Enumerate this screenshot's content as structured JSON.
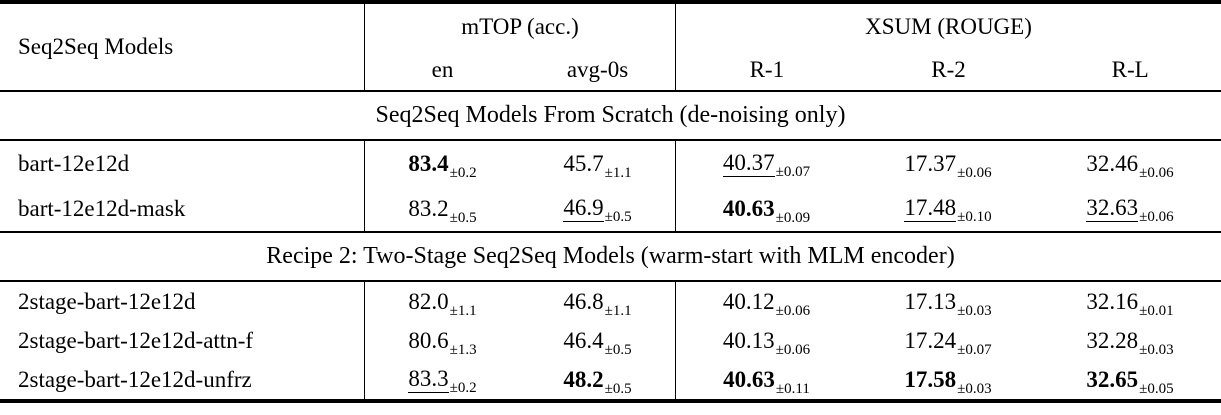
{
  "table": {
    "header": {
      "model_col": "Seq2Seq Models",
      "groups": [
        {
          "label": "mTOP (acc.)",
          "cols": [
            "en",
            "avg-0s"
          ]
        },
        {
          "label": "XSUM (ROUGE)",
          "cols": [
            "R-1",
            "R-2",
            "R-L"
          ]
        }
      ]
    },
    "sections": [
      {
        "title": "Seq2Seq Models From Scratch (de-noising only)",
        "rows": [
          {
            "model": "bart-12e12d",
            "cells": [
              {
                "value": "83.4",
                "pm": "±0.2",
                "style": "bold"
              },
              {
                "value": "45.7",
                "pm": "±1.1",
                "style": "plain"
              },
              {
                "value": "40.37",
                "pm": "±0.07",
                "style": "underline"
              },
              {
                "value": "17.37",
                "pm": "±0.06",
                "style": "plain"
              },
              {
                "value": "32.46",
                "pm": "±0.06",
                "style": "plain"
              }
            ]
          },
          {
            "model": "bart-12e12d-mask",
            "cells": [
              {
                "value": "83.2",
                "pm": "±0.5",
                "style": "plain"
              },
              {
                "value": "46.9",
                "pm": "±0.5",
                "style": "underline"
              },
              {
                "value": "40.63",
                "pm": "±0.09",
                "style": "bold"
              },
              {
                "value": "17.48",
                "pm": "±0.10",
                "style": "underline"
              },
              {
                "value": "32.63",
                "pm": "±0.06",
                "style": "underline"
              }
            ]
          }
        ]
      },
      {
        "title": "Recipe 2: Two-Stage Seq2Seq Models (warm-start with MLM encoder)",
        "rows": [
          {
            "model": "2stage-bart-12e12d",
            "cells": [
              {
                "value": "82.0",
                "pm": "±1.1",
                "style": "plain"
              },
              {
                "value": "46.8",
                "pm": "±1.1",
                "style": "plain"
              },
              {
                "value": "40.12",
                "pm": "±0.06",
                "style": "plain"
              },
              {
                "value": "17.13",
                "pm": "±0.03",
                "style": "plain"
              },
              {
                "value": "32.16",
                "pm": "±0.01",
                "style": "plain"
              }
            ]
          },
          {
            "model": "2stage-bart-12e12d-attn-f",
            "cells": [
              {
                "value": "80.6",
                "pm": "±1.3",
                "style": "plain"
              },
              {
                "value": "46.4",
                "pm": "±0.5",
                "style": "plain"
              },
              {
                "value": "40.13",
                "pm": "±0.06",
                "style": "plain"
              },
              {
                "value": "17.24",
                "pm": "±0.07",
                "style": "plain"
              },
              {
                "value": "32.28",
                "pm": "±0.03",
                "style": "plain"
              }
            ]
          },
          {
            "model": "2stage-bart-12e12d-unfrz",
            "cells": [
              {
                "value": "83.3",
                "pm": "±0.2",
                "style": "underline"
              },
              {
                "value": "48.2",
                "pm": "±0.5",
                "style": "bold"
              },
              {
                "value": "40.63",
                "pm": "±0.11",
                "style": "bold"
              },
              {
                "value": "17.58",
                "pm": "±0.03",
                "style": "bold"
              },
              {
                "value": "32.65",
                "pm": "±0.05",
                "style": "bold"
              }
            ]
          }
        ]
      }
    ]
  }
}
